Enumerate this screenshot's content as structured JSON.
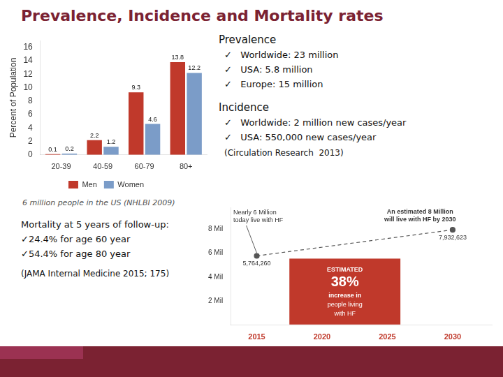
{
  "title": "Prevalence, Incidence and Mortality rates",
  "annotations": [
    {
      "heading": "Prevalence",
      "lines": [
        "✓   Worldwide: 23 million",
        "✓   USA: 5.8 million",
        "✓   Europe: 15 million"
      ]
    },
    {
      "heading": "Incidence",
      "lines": [
        "✓   Worldwide: 2 million new cases/year",
        "✓   USA: 550,000 new cases/year"
      ],
      "note": "(Circulation Research  2013)"
    },
    {
      "heading": "Mortality at 5 years of follow-up:",
      "lines": [
        "✓24.4% for age 60 year",
        "✓54.4% for age 80 year"
      ],
      "note": "(JAMA Internal Medicine 2015; 175)"
    }
  ],
  "chart_data": [
    {
      "type": "bar",
      "categories": [
        "20-39",
        "40-59",
        "60-79",
        "80+"
      ],
      "series": [
        {
          "name": "Men",
          "color": "#C0392B",
          "values": [
            0.1,
            2.2,
            9.3,
            13.8
          ]
        },
        {
          "name": "Women",
          "color": "#7B9CC8",
          "values": [
            0.2,
            1.2,
            4.6,
            12.2
          ]
        }
      ],
      "y_label": "Percent of Population",
      "ylim": [
        0,
        17
      ],
      "yticks": [
        0,
        2,
        4,
        6,
        8,
        10,
        12,
        14,
        16
      ],
      "grid": false,
      "legend": "bottom",
      "data_labels": true,
      "annotations": [
        "6 million people in the US (NHLBI 2009)"
      ]
    },
    {
      "type": "line",
      "x": [
        2015,
        2030
      ],
      "values": [
        5764260,
        7932623
      ],
      "value_labels": [
        "5,764,260",
        "7,932,623"
      ],
      "data_labels": true,
      "color": "#555555",
      "line_style": "dashed",
      "marker": "circle",
      "xlim": [
        2013,
        2033
      ],
      "xticks": [
        2015,
        2020,
        2025,
        2030
      ],
      "ylim": [
        0,
        9800000
      ],
      "yticks": [
        {
          "value": 2000000,
          "label": "2 Mil"
        },
        {
          "value": 4000000,
          "label": "4 Mil"
        },
        {
          "value": 6000000,
          "label": "6 Mil"
        },
        {
          "value": 8000000,
          "label": "8 Mil"
        }
      ],
      "grid": false,
      "annotations": [
        "Nearly 6 Million\ntoday live with HF",
        "An estimated 8 Million\nwill live with HF by 2030",
        "ESTIMATED",
        "38%",
        "increase in",
        "people living",
        "with HF"
      ]
    }
  ]
}
